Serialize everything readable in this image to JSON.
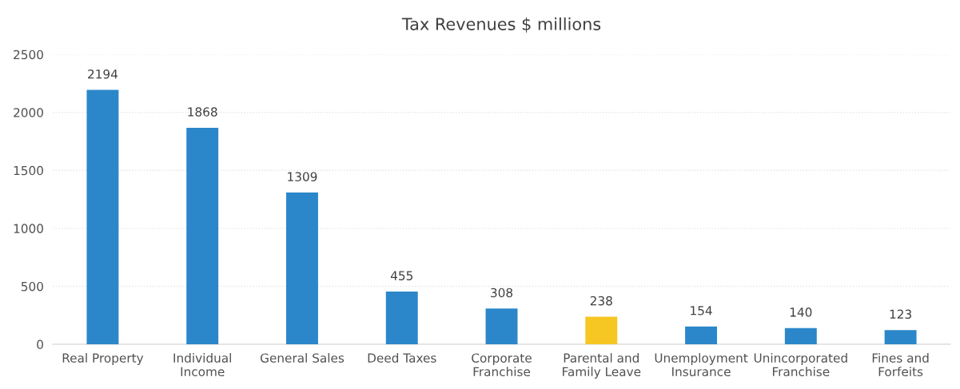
{
  "chart_data": {
    "type": "bar",
    "title": "Tax Revenues $ millions",
    "categories": [
      "Real Property",
      "Individual\nIncome",
      "General Sales",
      "Deed Taxes",
      "Corporate\nFranchise",
      "Parental and\nFamily Leave",
      "Unemployment\nInsurance",
      "Unincorporated\nFranchise",
      "Fines and\nForfeits"
    ],
    "values": [
      2194,
      1868,
      1309,
      455,
      308,
      238,
      154,
      140,
      123
    ],
    "colors": [
      "#2b87c9",
      "#2b87c9",
      "#2b87c9",
      "#2b87c9",
      "#2b87c9",
      "#f6c623",
      "#2b87c9",
      "#2b87c9",
      "#2b87c9"
    ],
    "ylim": [
      0,
      2500
    ],
    "yticks": [
      0,
      500,
      1000,
      1500,
      2000,
      2500
    ],
    "grid": "y",
    "data_labels": true
  }
}
